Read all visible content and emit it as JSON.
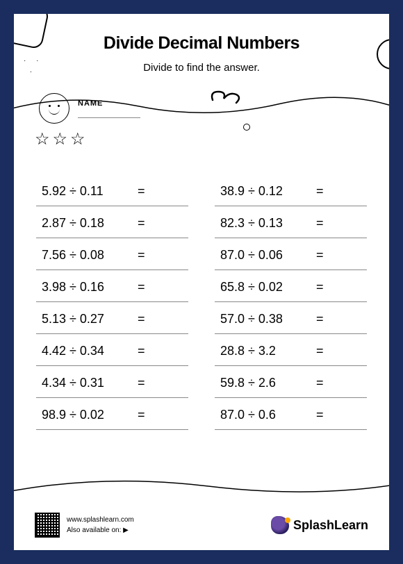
{
  "title": "Divide  Decimal Numbers",
  "subtitle": "Divide to find the answer.",
  "name_label": "NAME",
  "problems_left": [
    {
      "a": "5.92",
      "b": "0.11"
    },
    {
      "a": "2.87",
      "b": "0.18"
    },
    {
      "a": "7.56",
      "b": "0.08"
    },
    {
      "a": "3.98",
      "b": "0.16"
    },
    {
      "a": "5.13",
      "b": "0.27"
    },
    {
      "a": "4.42",
      "b": "0.34"
    },
    {
      "a": "4.34",
      "b": "0.31"
    },
    {
      "a": "98.9",
      "b": "0.02"
    }
  ],
  "problems_right": [
    {
      "a": "38.9",
      "b": "0.12"
    },
    {
      "a": "82.3",
      "b": "0.13"
    },
    {
      "a": "87.0",
      "b": "0.06"
    },
    {
      "a": "65.8",
      "b": "0.02"
    },
    {
      "a": "57.0",
      "b": "0.38"
    },
    {
      "a": "28.8",
      "b": "3.2"
    },
    {
      "a": "59.8",
      "b": "2.6"
    },
    {
      "a": "87.0",
      "b": "0.6"
    }
  ],
  "footer": {
    "url": "www.splashlearn.com",
    "available": "Also available on:",
    "brand": "SplashLearn"
  },
  "colors": {
    "frame": "#1a2d5e",
    "page": "#ffffff",
    "text": "#000000",
    "rule": "#888888"
  }
}
